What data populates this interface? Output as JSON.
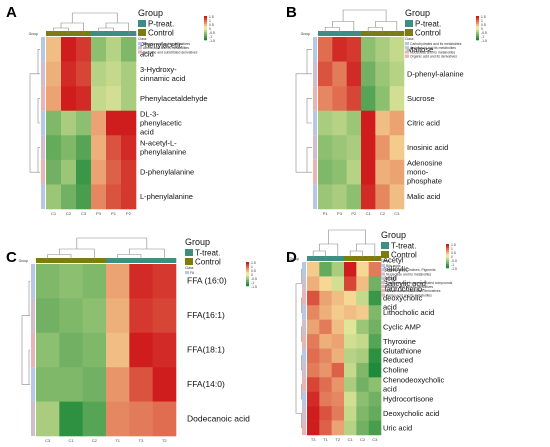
{
  "colors": {
    "low": "#1f8a3a",
    "mid": "#fbf3a6",
    "high": "#cf1d1d",
    "group_ctrl": "#7b7e0f",
    "group_p": "#3c8d82",
    "group_t": "#3e8f7e",
    "class_bar_default": "#c9b08a"
  },
  "chart_data": [
    {
      "panel": "A",
      "type": "heatmap",
      "group_title": "Group",
      "legend_groups": [
        "P-treat.",
        "Control"
      ],
      "legend_class_title": "Class",
      "legend_classes": [
        "Organic acid and its derivatives",
        "Amino acid and its metabolites",
        "Benzene and substituted derivatives"
      ],
      "scale_ticks": [
        "1.5",
        "1",
        "0.5",
        "0",
        "-0.5",
        "-1",
        "-1.5"
      ],
      "rows": [
        "Phenylacetic acid",
        "3-Hydroxy-cinnamic acid",
        "Phenylacetaldehyde",
        "DL-3-phenylacetic acid",
        "N-acetyl-L-phenylalanine",
        "D-phenylalanine",
        "L-phenylalanine"
      ],
      "columns": [
        "C1",
        "C2",
        "C3",
        "P3",
        "P1",
        "P2"
      ],
      "values": [
        [
          0.4,
          1.6,
          1.4,
          -0.8,
          -0.5,
          -0.9
        ],
        [
          0.5,
          1.5,
          1.3,
          -0.5,
          -0.4,
          -0.6
        ],
        [
          0.6,
          1.6,
          1.5,
          -0.4,
          -0.3,
          -0.6
        ],
        [
          -0.9,
          -0.6,
          -0.8,
          0.6,
          1.8,
          1.6
        ],
        [
          -1.1,
          -0.9,
          -1.2,
          0.5,
          1.2,
          1.5
        ],
        [
          -1.0,
          -0.7,
          -1.4,
          0.6,
          1.1,
          1.4
        ],
        [
          -0.7,
          -1.0,
          -1.3,
          0.8,
          1.2,
          1.4
        ]
      ]
    },
    {
      "panel": "B",
      "type": "heatmap",
      "group_title": "Group",
      "legend_groups": [
        "P-treat.",
        "Control"
      ],
      "legend_class_title": "Class",
      "legend_classes": [
        "Carbohydrates and its metabolites",
        "Amino acid and its metabolites",
        "Nucleotide and its metabolites",
        "Organic acid and its derivatives"
      ],
      "scale_ticks": [
        "1.5",
        "1",
        "0.5",
        "0",
        "-0.5",
        "-1",
        "-1.5"
      ],
      "rows": [
        "Maltose",
        "D-phenyl-alanine",
        "Sucrose",
        "Citric acid",
        "Inosinic acid",
        "Adenosine mono-phosphate",
        "Malic acid"
      ],
      "columns": [
        "P1",
        "P3",
        "P2",
        "C1",
        "C2",
        "C3"
      ],
      "values": [
        [
          1.0,
          1.5,
          1.4,
          -0.8,
          -0.6,
          -0.4
        ],
        [
          1.2,
          0.9,
          1.5,
          -1.0,
          -0.7,
          -0.5
        ],
        [
          0.8,
          1.0,
          1.3,
          -1.2,
          -0.8,
          -0.3
        ],
        [
          -0.6,
          -0.5,
          -0.7,
          1.8,
          0.4,
          0.6
        ],
        [
          -0.8,
          -0.7,
          -0.6,
          1.7,
          0.7,
          0.3
        ],
        [
          -0.9,
          -0.8,
          -0.5,
          1.6,
          0.5,
          0.6
        ],
        [
          -0.7,
          -0.6,
          -0.8,
          1.5,
          0.8,
          0.4
        ]
      ]
    },
    {
      "panel": "C",
      "type": "heatmap",
      "group_title": "Group",
      "legend_groups": [
        "T-treat.",
        "Control"
      ],
      "legend_class_title": "Class",
      "legend_classes": [
        "FA"
      ],
      "scale_ticks": [
        "1.5",
        "1",
        "0.5",
        "0",
        "-0.5",
        "-1",
        "-1.5"
      ],
      "rows": [
        "FFA (16:0)",
        "FFA(16:1)",
        "FFA(18:1)",
        "FFA(14:0)",
        "Dodecanoic acid"
      ],
      "columns": [
        "C3",
        "C1",
        "C2",
        "T1",
        "T3",
        "T2"
      ],
      "values": [
        [
          -0.9,
          -0.8,
          -0.9,
          0.6,
          1.5,
          1.4
        ],
        [
          -1.0,
          -0.9,
          -0.8,
          0.5,
          1.4,
          1.3
        ],
        [
          -0.8,
          -1.0,
          -0.9,
          0.4,
          1.6,
          1.5
        ],
        [
          -0.9,
          -0.9,
          -1.0,
          0.7,
          1.2,
          1.9
        ],
        [
          -0.6,
          -1.5,
          -1.2,
          0.8,
          0.9,
          1.0
        ]
      ]
    },
    {
      "panel": "D",
      "type": "heatmap",
      "group_title": "Group",
      "legend_groups": [
        "T-treat.",
        "Control"
      ],
      "legend_class_title": "Class",
      "legend_classes": [
        "Bile acids",
        "Tryptamines, Cholines, Pigments",
        "Nucleotide and its metabolites",
        "Others",
        "Hormones and hormone related compounds",
        "Organic acid and its derivatives",
        "Benzene and substituted derivatives",
        "Amino acid and its metabolites"
      ],
      "scale_ticks": [
        "1.5",
        "1",
        "0.5",
        "0",
        "-0.5",
        "-1",
        "-1.5"
      ],
      "rows": [
        "Acetyl salicylic acid",
        "Salicylic acid",
        "Taurocheno-deoxycholic acid",
        "Lithocholic acid",
        "Cyclic AMP",
        "Thyroxine",
        "Glutathione Reduced",
        "Choline",
        "Chenodeoxycholic acid",
        "Hydrocortisone",
        "Deoxycholic acid",
        "Uric acid"
      ],
      "columns": [
        "T3",
        "T1",
        "T2",
        "C1",
        "C2",
        "C3"
      ],
      "values": [
        [
          0.3,
          -1.1,
          -0.6,
          1.6,
          0.2,
          0.9
        ],
        [
          0.5,
          0.2,
          -0.3,
          1.3,
          0.4,
          -1.0
        ],
        [
          1.2,
          0.6,
          0.4,
          0.2,
          -0.4,
          -1.4
        ],
        [
          0.8,
          0.5,
          0.3,
          0.4,
          0.3,
          -0.9
        ],
        [
          0.6,
          0.9,
          0.4,
          -0.2,
          -0.7,
          -1.0
        ],
        [
          0.9,
          0.5,
          0.6,
          -0.3,
          -0.4,
          -1.2
        ],
        [
          1.0,
          0.8,
          0.5,
          -0.5,
          -0.6,
          -1.5
        ],
        [
          0.9,
          0.7,
          1.1,
          -0.4,
          -0.9,
          -1.6
        ],
        [
          1.3,
          1.0,
          0.7,
          -0.6,
          -1.0,
          -0.8
        ],
        [
          1.5,
          0.9,
          0.8,
          -0.3,
          -0.8,
          -1.0
        ],
        [
          1.6,
          1.2,
          0.9,
          -0.4,
          -0.9,
          -1.1
        ],
        [
          1.7,
          1.1,
          0.6,
          -0.5,
          -1.0,
          -1.3
        ]
      ]
    }
  ]
}
